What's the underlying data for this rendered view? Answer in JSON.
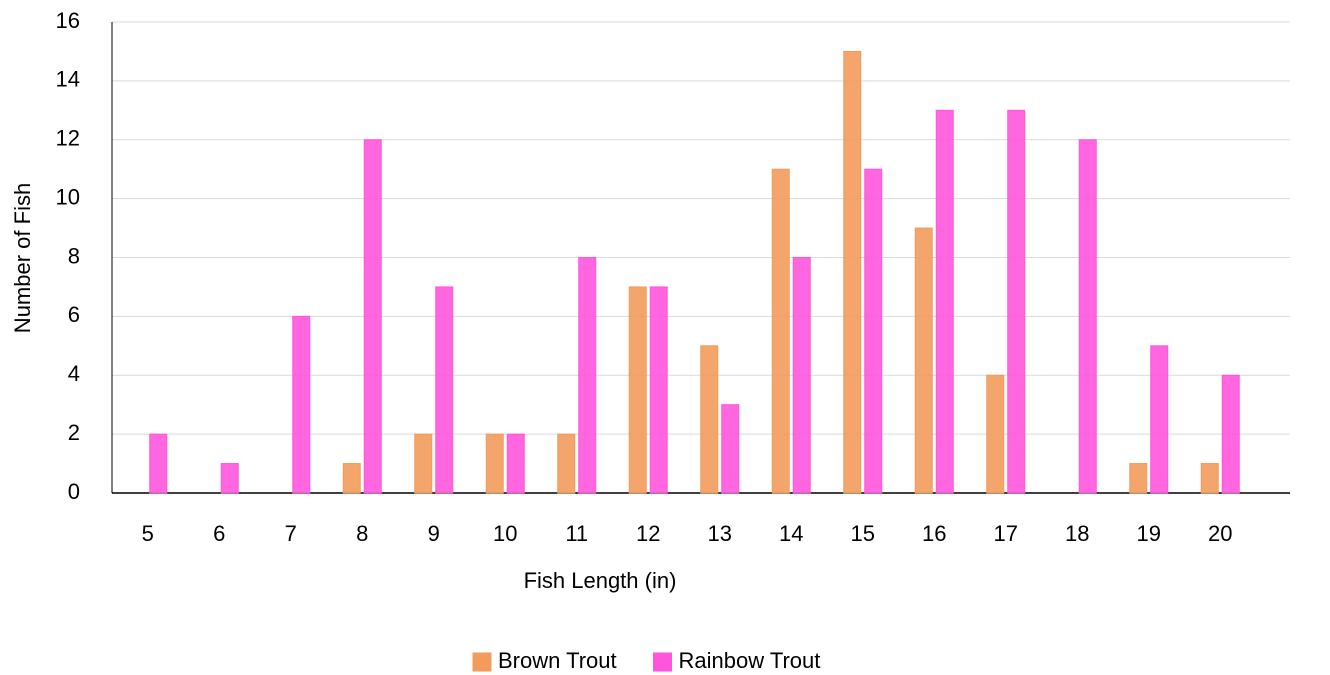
{
  "chart_data": {
    "type": "bar",
    "x_label": "Fish Length (in)",
    "y_label": "Number of Fish",
    "categories": [
      "5",
      "6",
      "7",
      "8",
      "9",
      "10",
      "11",
      "12",
      "13",
      "14",
      "15",
      "16",
      "17",
      "18",
      "19",
      "20"
    ],
    "series": [
      {
        "name": "Brown Trout",
        "color": "#f29b5c",
        "values": [
          0,
          0,
          0,
          1,
          2,
          2,
          2,
          7,
          5,
          11,
          15,
          9,
          4,
          0,
          1,
          1
        ]
      },
      {
        "name": "Rainbow Trout",
        "color": "#ff55dd",
        "values": [
          2,
          1,
          6,
          12,
          7,
          2,
          8,
          7,
          3,
          8,
          11,
          13,
          13,
          12,
          5,
          4
        ]
      }
    ],
    "ylim": [
      0,
      16
    ],
    "yticks": [
      0,
      2,
      4,
      6,
      8,
      10,
      12,
      14,
      16
    ],
    "grid": true,
    "legend": "bottom"
  }
}
